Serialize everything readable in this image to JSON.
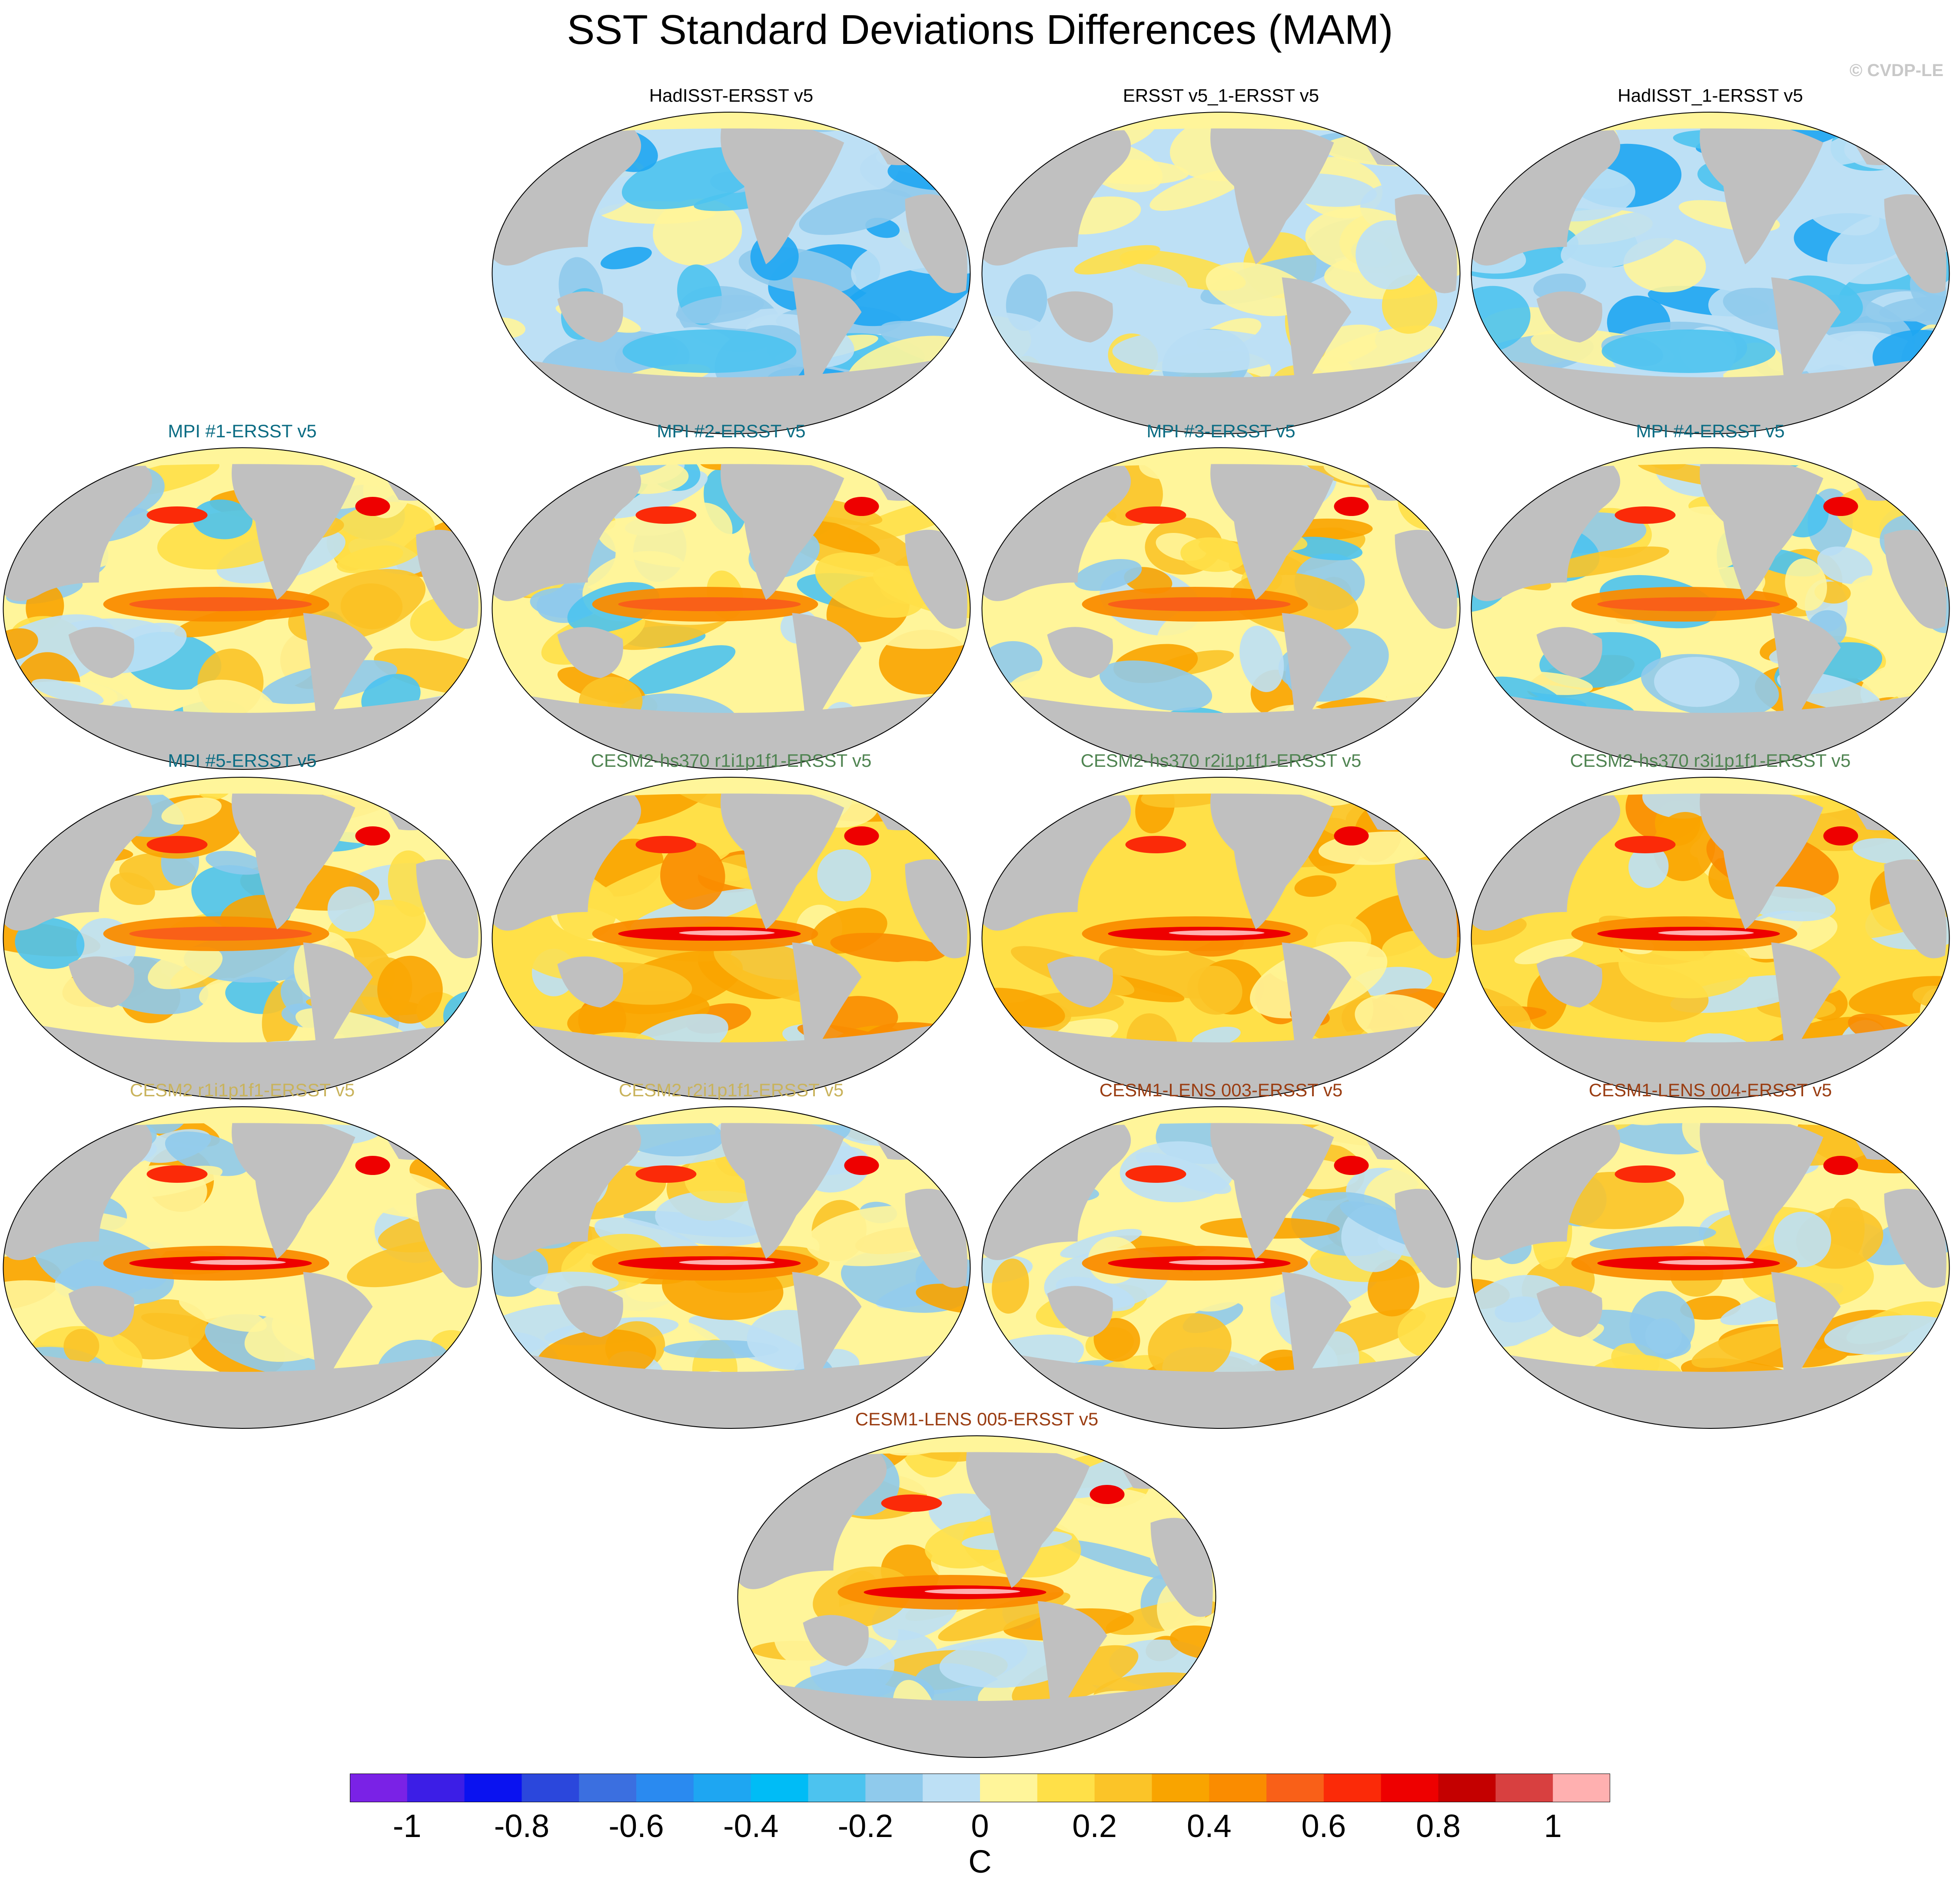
{
  "title": "SST Standard Deviations Differences (MAM)",
  "credit": "© CVDP-LE",
  "panels": [
    {
      "title": "HadISST-ERSST v5",
      "title_color": "#000000",
      "pattern": "obs_blue",
      "dominant": "negative"
    },
    {
      "title": "ERSST v5_1-ERSST v5",
      "title_color": "#000000",
      "pattern": "obs_mixed",
      "dominant": "weak"
    },
    {
      "title": "HadISST_1-ERSST v5",
      "title_color": "#000000",
      "pattern": "obs_blue",
      "dominant": "negative"
    },
    {
      "title": "MPI #1-ERSST v5",
      "title_color": "#0b6c83",
      "pattern": "model_mixed",
      "dominant": "positive"
    },
    {
      "title": "MPI #2-ERSST v5",
      "title_color": "#0b6c83",
      "pattern": "model_mixed",
      "dominant": "positive"
    },
    {
      "title": "MPI #3-ERSST v5",
      "title_color": "#0b6c83",
      "pattern": "model_mixed",
      "dominant": "positive"
    },
    {
      "title": "MPI #4-ERSST v5",
      "title_color": "#0b6c83",
      "pattern": "model_mixed",
      "dominant": "positive"
    },
    {
      "title": "MPI #5-ERSST v5",
      "title_color": "#0b6c83",
      "pattern": "model_mixed",
      "dominant": "positive"
    },
    {
      "title": "CESM2-hs370 r1i1p1f1-ERSST v5",
      "title_color": "#4f8451",
      "pattern": "model_warm",
      "dominant": "positive"
    },
    {
      "title": "CESM2-hs370 r2i1p1f1-ERSST v5",
      "title_color": "#4f8451",
      "pattern": "model_warm",
      "dominant": "positive"
    },
    {
      "title": "CESM2-hs370 r3i1p1f1-ERSST v5",
      "title_color": "#4f8451",
      "pattern": "model_warm",
      "dominant": "positive"
    },
    {
      "title": "CESM2 r1i1p1f1-ERSST v5",
      "title_color": "#c9b35c",
      "pattern": "model_enso",
      "dominant": "mixed"
    },
    {
      "title": "CESM2 r2i1p1f1-ERSST v5",
      "title_color": "#c9b35c",
      "pattern": "model_enso",
      "dominant": "mixed"
    },
    {
      "title": "CESM1-LENS 003-ERSST v5",
      "title_color": "#9a3d12",
      "pattern": "model_enso",
      "dominant": "mixed"
    },
    {
      "title": "CESM1-LENS 004-ERSST v5",
      "title_color": "#9a3d12",
      "pattern": "model_enso",
      "dominant": "mixed"
    },
    {
      "title": "CESM1-LENS 005-ERSST v5",
      "title_color": "#9a3d12",
      "pattern": "model_enso",
      "dominant": "mixed"
    }
  ],
  "colorbar": {
    "colors": [
      "#7a22e6",
      "#3c1ee6",
      "#0a12f0",
      "#2b47dc",
      "#3b6fe0",
      "#2a8af0",
      "#1ea6f2",
      "#00bcf6",
      "#4cc3ef",
      "#8fcaec",
      "#bde0f5",
      "#fff59a",
      "#ffe048",
      "#fbc428",
      "#f9a400",
      "#fa8c00",
      "#f96018",
      "#fb2a08",
      "#ee0000",
      "#c40000",
      "#d84040",
      "#ffb0b0"
    ],
    "labels": [
      "-1",
      "-0.8",
      "-0.6",
      "-0.4",
      "-0.2",
      "0",
      "0.2",
      "0.4",
      "0.6",
      "0.8",
      "1"
    ],
    "unit": "C"
  }
}
